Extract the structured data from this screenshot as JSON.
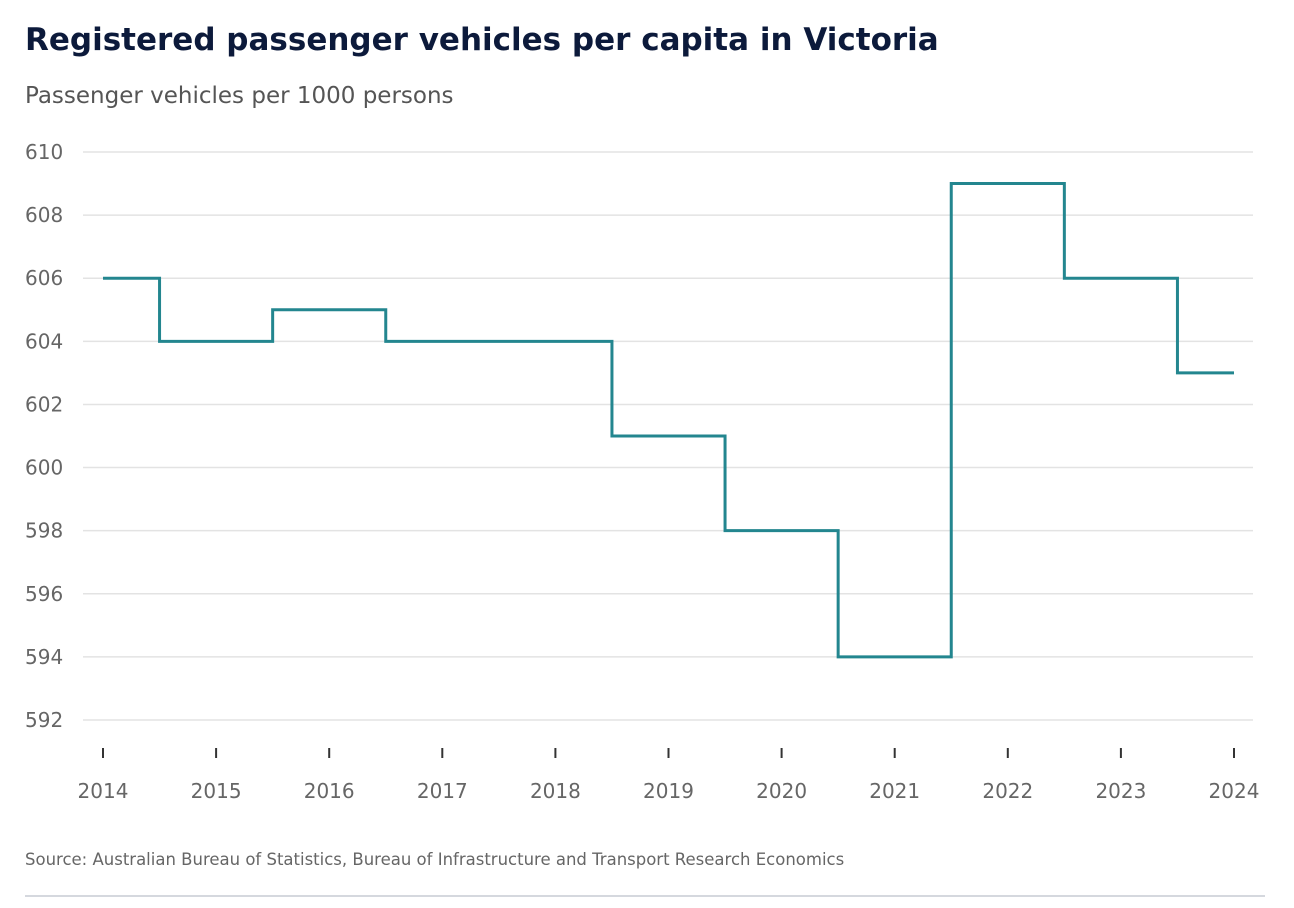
{
  "chart_data": {
    "type": "line",
    "style": "step-mid",
    "title": "Registered passenger vehicles per capita in Victoria",
    "subtitle": "Passenger vehicles per 1000 persons",
    "source": "Source: Australian Bureau of Statistics, Bureau of Infrastructure and Transport Research Economics",
    "xlabel": "",
    "ylabel": "Passenger vehicles per 1000 persons",
    "x": [
      2014,
      2015,
      2016,
      2017,
      2018,
      2019,
      2020,
      2021,
      2022,
      2023,
      2024
    ],
    "series": [
      {
        "name": "Victoria",
        "color": "#23868f",
        "values": [
          606,
          604,
          605,
          604,
          604,
          601,
          598,
          594,
          609,
          606,
          603
        ]
      }
    ],
    "ylim": [
      592,
      610
    ],
    "yticks": [
      610,
      608,
      606,
      604,
      602,
      600,
      598,
      596,
      594,
      592
    ],
    "xlim": [
      2014,
      2024
    ],
    "grid": true,
    "legend": "none"
  }
}
